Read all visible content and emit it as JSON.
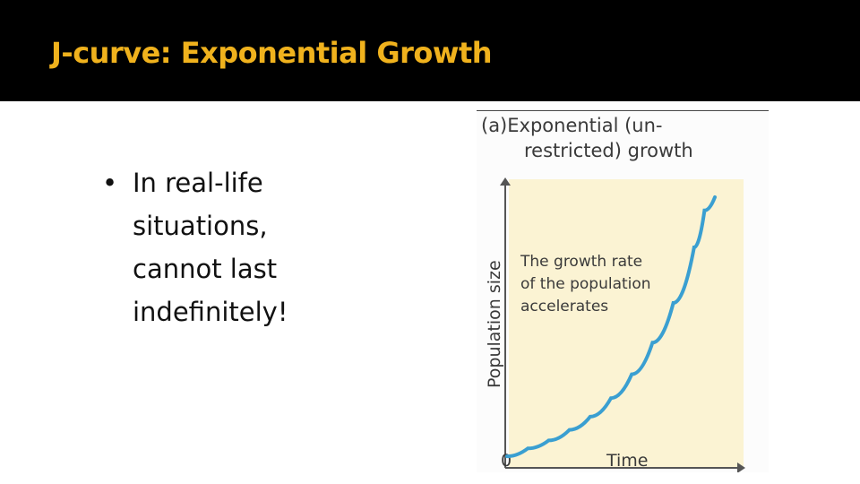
{
  "slide": {
    "title": "J-curve: Exponential Growth",
    "bullet": "In real-life situations, cannot last indefinitely!",
    "bullet_symbol": "•"
  },
  "figure": {
    "heading_line1": "(a)Exponential (un-",
    "heading_line2": "restricted) growth",
    "annotation_lines": [
      "The growth rate",
      "of the population",
      "accelerates"
    ],
    "colors": {
      "plot_background": "#fbf3d3",
      "curve": "#3a9fd1",
      "title_text": "#f0b21d"
    }
  },
  "chart_data": {
    "type": "line",
    "xlabel": "Time",
    "ylabel": "Population size",
    "x_tick_labels": [
      "0"
    ],
    "curve": "exponential",
    "series": [
      {
        "x": [
          0,
          0.1,
          0.2,
          0.3,
          0.4,
          0.5,
          0.6,
          0.7,
          0.8,
          0.9,
          0.95,
          1.0
        ],
        "values": [
          0.02,
          0.05,
          0.08,
          0.12,
          0.17,
          0.24,
          0.33,
          0.45,
          0.6,
          0.81,
          0.95,
          1.0
        ]
      }
    ]
  }
}
